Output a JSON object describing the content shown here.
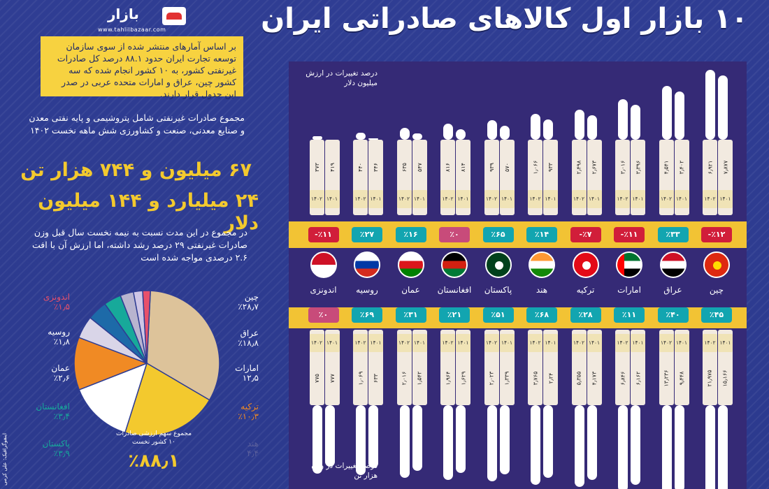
{
  "header": {
    "logo_name": "بازار",
    "logo_url": "www.tahlilbazaar.com",
    "title": "۱۰ بازار اول کالاهای صادراتی ایران"
  },
  "left": {
    "intro": "بر اساس آمارهای منتشر شده از سوی سازمان توسعه تجارت ایران حدود ۸۸.۱ درصد کل صادرات غیرنفتی کشور، به ۱۰ کشور انجام شده که سه کشور چین، عراق و امارات متحده عربی در صدر این جدول قرار دارند.",
    "p2": "مجموع صادرات غیرنفتی شامل پتروشیمی و پایه نفتی معدن و صنایع معدنی، صنعت و کشاورزی شش ماهه نخست ۱۴۰۲",
    "big_weight": "۶۷ میلیون و ۷۴۴ هزار تن",
    "big_value": "۲۴ میلیارد و ۱۴۴ میلیون دلار",
    "p3": "در مجموع در این مدت نسبت به نیمه نخست سال قبل وزن صادرات غیرنفتی ۲۹ درصد رشد داشته، اما ارزش آن با افت ۲.۶ درصدی مواجه شده است",
    "pie_note": "مجموع سهم ارزشی صادرات ۱۰ کشور نخست",
    "pie_total": "٪۸۸٫۱",
    "credit": "اینفوگرافیک: علی کرمی"
  },
  "bands": {
    "top_label_1": "درصد تغییرات در ارزش",
    "top_label_2": "میلیون دلار",
    "bot_label_1": "درصد تغییرات در وزن",
    "bot_label_2": "هزار تن"
  },
  "chart_data": [
    {
      "type": "pie",
      "title": "مجموع سهم ارزشی صادرات ۱۰ کشور نخست",
      "slices": [
        {
          "label": "چین",
          "value_text": "٪۲۸٫۷",
          "value": 28.7,
          "color": "#ddc39a"
        },
        {
          "label": "عراق",
          "value_text": "٪۱۸٫۸",
          "value": 18.8,
          "color": "#f3c92e"
        },
        {
          "label": "امارات",
          "value_text": "۱۲٫۵",
          "value": 12.5,
          "color": "#ffffff"
        },
        {
          "label": "ترکیه",
          "value_text": "٪۱۰٫۳",
          "value": 10.3,
          "color": "#f08a24"
        },
        {
          "label": "هند",
          "value_text": "۴٫۴",
          "value": 4.4,
          "color": "#d9d5e8"
        },
        {
          "label": "پاکستان",
          "value_text": "٪۳٫۹",
          "value": 3.9,
          "color": "#1d6aa8"
        },
        {
          "label": "افغانستان",
          "value_text": "٪۳٫۴",
          "value": 3.4,
          "color": "#17a99a"
        },
        {
          "label": "عمان",
          "value_text": "٪۲٫۶",
          "value": 2.6,
          "color": "#b8b4cf"
        },
        {
          "label": "روسیه",
          "value_text": "٪۱٫۸",
          "value": 1.8,
          "color": "#cfc6e6"
        },
        {
          "label": "اندونزی",
          "value_text": "٪۱٫۵",
          "value": 1.5,
          "color": "#e8506a"
        }
      ]
    },
    {
      "type": "table",
      "title": "۱۰ بازار اول کالاهای صادراتی ایران",
      "year_labels": {
        "prev": "۱۴۰۱",
        "curr": "۱۴۰۲"
      },
      "countries": [
        {
          "name": "چین",
          "value_change": "٪۱۲-",
          "value_change_dir": "down",
          "value_1401": "۷٫۸۷۷",
          "value_1402": "۶٫۹۲۱",
          "weight_change": "٪۴۵",
          "weight_change_dir": "up",
          "weight_1401": "۱۵٫۱۶۶",
          "weight_1402": "۲۱٫۹۷۵",
          "height": 1.0,
          "flag": [
            "#de2910"
          ],
          "flag_mark": "#ffde00"
        },
        {
          "name": "عراق",
          "value_change": "٪۳۳",
          "value_change_dir": "up",
          "value_1401": "۳٫۴۰۲",
          "value_1402": "۴٫۵۴۱",
          "weight_change": "٪۴۰",
          "weight_change_dir": "up",
          "weight_1401": "۹٫۴۴۸",
          "weight_1402": "۱۳٫۲۳۶",
          "height": 0.85,
          "flag": [
            "#ce1126",
            "#ffffff",
            "#000000"
          ]
        },
        {
          "name": "امارات",
          "value_change": "٪۱۱-",
          "value_change_dir": "down",
          "value_1401": "۳٫۳۹۶",
          "value_1402": "۳٫۰۱۶",
          "weight_change": "٪۱۱",
          "weight_change_dir": "up",
          "weight_1401": "۶٫۱۶۲",
          "weight_1402": "۶٫۸۴۶",
          "height": 0.72,
          "flag": [
            "#00732f",
            "#ffffff",
            "#000000"
          ],
          "flag_side": "#ff0000"
        },
        {
          "name": "ترکیه",
          "value_change": "٪۷-",
          "value_change_dir": "down",
          "value_1401": "۲٫۶۷۳",
          "value_1402": "۲٫۴۹۸",
          "weight_change": "٪۲۸",
          "weight_change_dir": "up",
          "weight_1401": "۴٫۱۷۳",
          "weight_1402": "۵٫۳۵۵",
          "height": 0.62,
          "flag": [
            "#e30a17"
          ],
          "flag_mark": "#ffffff"
        },
        {
          "name": "هند",
          "value_change": "٪۱۴",
          "value_change_dir": "up",
          "value_1401": "۹۳۳",
          "value_1402": "۱٫۰۶۶",
          "weight_change": "٪۶۸",
          "weight_change_dir": "up",
          "weight_1401": "۲٫۲۴",
          "weight_1402": "۳٫۷۶۵",
          "height": 0.58,
          "flag": [
            "#ff9933",
            "#ffffff",
            "#138808"
          ]
        },
        {
          "name": "پاکستان",
          "value_change": "٪۶۵",
          "value_change_dir": "up",
          "value_1401": "۵۷۰",
          "value_1402": "۹۳۹",
          "weight_change": "٪۵۱",
          "weight_change_dir": "up",
          "weight_1401": "۱٫۳۳۹",
          "weight_1402": "۲٫۰۲۳",
          "height": 0.52,
          "flag": [
            "#01411c"
          ],
          "flag_mark": "#ffffff"
        },
        {
          "name": "افغانستان",
          "value_change": "٪۰",
          "value_change_dir": "neutral",
          "value_1401": "۸۱۴",
          "value_1402": "۸۱۶",
          "weight_change": "٪۲۱",
          "weight_change_dir": "up",
          "weight_1401": "۱٫۶۲۹",
          "weight_1402": "۱٫۹۶۴",
          "height": 0.49,
          "flag": [
            "#000000",
            "#d32011",
            "#007a36"
          ]
        },
        {
          "name": "عمان",
          "value_change": "٪۱۶",
          "value_change_dir": "up",
          "value_1401": "۵۴۷",
          "value_1402": "۶۳۵",
          "weight_change": "٪۳۱",
          "weight_change_dir": "up",
          "weight_1401": "۱٫۵۴۲",
          "weight_1402": "۲٫۰۱۶",
          "height": 0.45,
          "flag": [
            "#ffffff",
            "#db161b",
            "#008000"
          ]
        },
        {
          "name": "روسیه",
          "value_change": "٪۲۷",
          "value_change_dir": "up",
          "value_1401": "۳۴۶",
          "value_1402": "۴۴۰",
          "weight_change": "٪۶۹",
          "weight_change_dir": "up",
          "weight_1401": "۶۳۳",
          "weight_1402": "۱٫۰۶۹",
          "height": 0.4,
          "flag": [
            "#ffffff",
            "#0039a6",
            "#d52b1e"
          ]
        },
        {
          "name": "اندونزی",
          "value_change": "٪۱۱-",
          "value_change_dir": "down",
          "value_1401": "۴۱۹",
          "value_1402": "۳۷۳",
          "weight_change": "٪۰",
          "weight_change_dir": "neutral",
          "weight_1401": "۷۷۷",
          "weight_1402": "۷۷۵",
          "height": 0.37,
          "flag": [
            "#ce1126",
            "#ffffff"
          ]
        }
      ]
    }
  ],
  "colors": {
    "up": "#12a5b0",
    "down": "#d11e3a",
    "neutral": "#c84b7a",
    "yellow": "#f2c334"
  }
}
